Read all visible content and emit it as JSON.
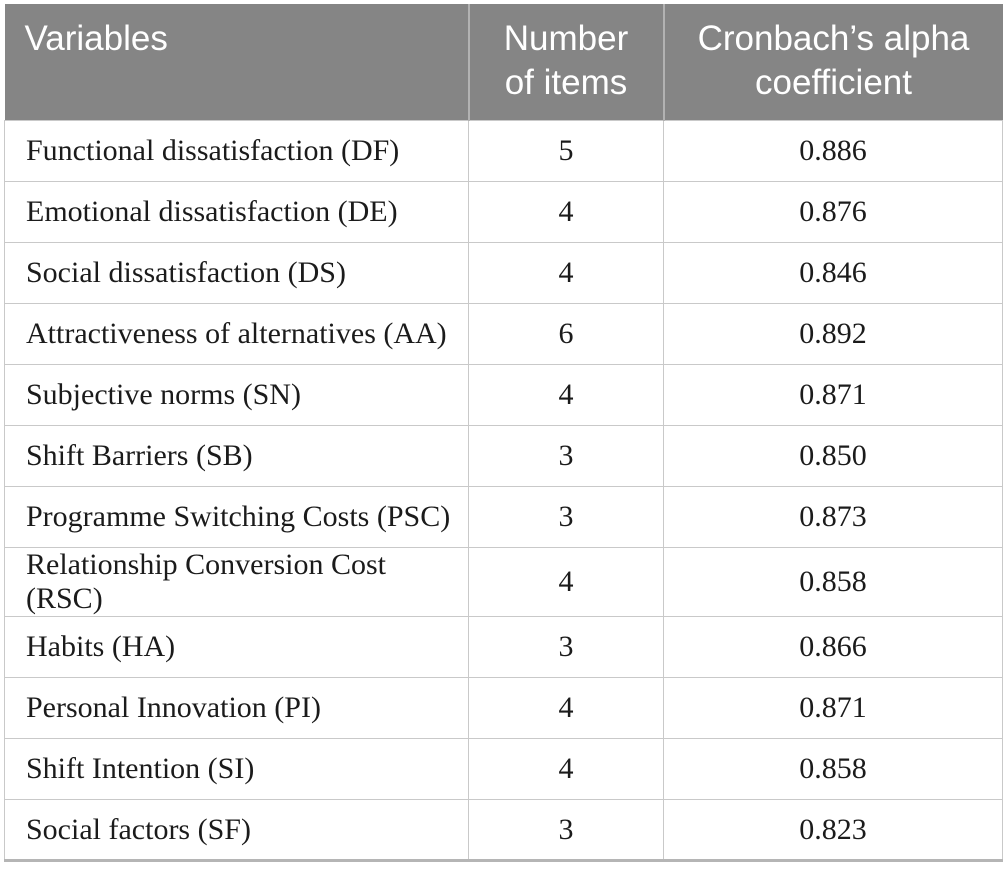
{
  "table": {
    "name": "Reliability statistics table",
    "colors": {
      "header_bg": "#858585",
      "header_text": "#ffffff",
      "body_text": "#1b1b1b",
      "grid_line": "#c9c9c9",
      "header_divider": "#b2b2b2",
      "bottom_rule": "#b5b5b5"
    },
    "header": {
      "variables": "Variables",
      "items": "Number\nof items",
      "alpha": "Cronbach’s alpha\ncoefficient"
    },
    "rows": [
      {
        "variable": "Functional dissatisfaction (DF)",
        "items": "5",
        "alpha": "0.886"
      },
      {
        "variable": "Emotional dissatisfaction (DE)",
        "items": "4",
        "alpha": "0.876"
      },
      {
        "variable": "Social dissatisfaction (DS)",
        "items": "4",
        "alpha": "0.846"
      },
      {
        "variable": "Attractiveness of alternatives (AA)",
        "items": "6",
        "alpha": "0.892"
      },
      {
        "variable": "Subjective norms (SN)",
        "items": "4",
        "alpha": "0.871"
      },
      {
        "variable": "Shift Barriers (SB)",
        "items": "3",
        "alpha": "0.850"
      },
      {
        "variable": "Programme Switching Costs (PSC)",
        "items": "3",
        "alpha": "0.873"
      },
      {
        "variable": "Relationship Conversion Cost (RSC)",
        "items": "4",
        "alpha": "0.858"
      },
      {
        "variable": "Habits (HA)",
        "items": "3",
        "alpha": "0.866"
      },
      {
        "variable": "Personal Innovation (PI)",
        "items": "4",
        "alpha": "0.871"
      },
      {
        "variable": "Shift Intention (SI)",
        "items": "4",
        "alpha": "0.858"
      },
      {
        "variable": "Social factors (SF)",
        "items": "3",
        "alpha": "0.823"
      }
    ]
  }
}
